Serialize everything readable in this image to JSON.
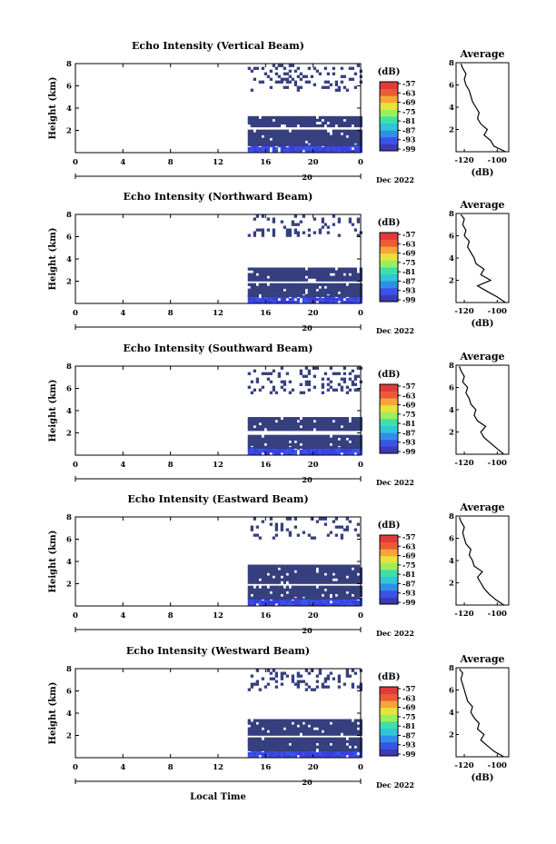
{
  "chart_data": [
    {
      "type": "heatmap",
      "title": "Echo Intensity (Vertical Beam)",
      "ylabel": "Height (km)",
      "xlim": [
        0,
        24
      ],
      "ylim": [
        0,
        8
      ],
      "x_ticks": [
        "0",
        "4",
        "8",
        "12",
        "16",
        "20",
        "0"
      ],
      "y_ticks": [
        "2",
        "4",
        "6",
        "8"
      ],
      "date_label": "20",
      "date_right": "Dec 2022",
      "colorbar": {
        "label": "(dB)",
        "ticks": [
          "-57",
          "-63",
          "-69",
          "-75",
          "-81",
          "-87",
          "-93",
          "-99"
        ]
      },
      "data_start_hour": 14.5,
      "layers": [
        {
          "y0": 0.0,
          "y1": 0.6,
          "level": "-90",
          "color": "#3b3ee0"
        },
        {
          "y0": 0.6,
          "y1": 2.0,
          "level": "-96",
          "color": "#363f7e"
        },
        {
          "y0": 2.3,
          "y1": 3.2,
          "level": "-96",
          "color": "#363f7e"
        },
        {
          "y0": 5.5,
          "y1": 7.8,
          "level": "-96",
          "color": "#363f7e",
          "sparse": true
        }
      ],
      "profile": {
        "title": "Average",
        "xlabel": "(dB)",
        "xlim": [
          -125,
          -93
        ],
        "ylim": [
          0,
          8
        ],
        "x_ticks": [
          "-120",
          "-100"
        ],
        "y_ticks": [
          "2",
          "4",
          "6",
          "8"
        ],
        "height": [
          0.0,
          0.5,
          1.0,
          1.5,
          2.0,
          2.5,
          3.0,
          3.5,
          4.0,
          4.5,
          5.0,
          5.5,
          6.0,
          6.5,
          7.0,
          7.5,
          7.9
        ],
        "value": [
          -95,
          -102,
          -104,
          -108,
          -106,
          -110,
          -112,
          -111,
          -113,
          -115,
          -116,
          -117,
          -119,
          -120,
          -119,
          -121,
          -122
        ]
      }
    },
    {
      "type": "heatmap",
      "title": "Echo Intensity (Northward Beam)",
      "ylabel": "Height (km)",
      "xlim": [
        0,
        24
      ],
      "ylim": [
        0,
        8
      ],
      "x_ticks": [
        "0",
        "4",
        "8",
        "12",
        "16",
        "20",
        "0"
      ],
      "y_ticks": [
        "2",
        "4",
        "6",
        "8"
      ],
      "date_label": "20",
      "date_right": "Dec 2022",
      "colorbar": {
        "label": "(dB)",
        "ticks": [
          "-57",
          "-63",
          "-69",
          "-75",
          "-81",
          "-87",
          "-93",
          "-99"
        ]
      },
      "data_start_hour": 14.5,
      "layers": [
        {
          "y0": 0.0,
          "y1": 0.6,
          "level": "-90",
          "color": "#3b3ee0"
        },
        {
          "y0": 0.6,
          "y1": 1.8,
          "level": "-96",
          "color": "#363f7e"
        },
        {
          "y0": 2.0,
          "y1": 3.2,
          "level": "-96",
          "color": "#363f7e"
        },
        {
          "y0": 6.0,
          "y1": 7.8,
          "level": "-96",
          "color": "#363f7e",
          "sparse": true
        }
      ],
      "profile": {
        "title": "Average",
        "xlabel": "(dB)",
        "xlim": [
          -125,
          -93
        ],
        "ylim": [
          0,
          8
        ],
        "x_ticks": [
          "-120",
          "-100"
        ],
        "y_ticks": [
          "2",
          "4",
          "6",
          "8"
        ],
        "height": [
          0.0,
          0.5,
          1.0,
          1.5,
          2.0,
          2.5,
          3.0,
          3.5,
          4.0,
          4.5,
          5.0,
          5.5,
          6.0,
          6.5,
          7.0,
          7.5,
          7.9
        ],
        "value": [
          -95,
          -100,
          -106,
          -112,
          -104,
          -110,
          -108,
          -113,
          -114,
          -116,
          -118,
          -117,
          -120,
          -119,
          -121,
          -120,
          -122
        ]
      }
    },
    {
      "type": "heatmap",
      "title": "Echo Intensity (Southward Beam)",
      "ylabel": "Height (km)",
      "xlim": [
        0,
        24
      ],
      "ylim": [
        0,
        8
      ],
      "x_ticks": [
        "0",
        "4",
        "8",
        "12",
        "16",
        "20",
        "0"
      ],
      "y_ticks": [
        "2",
        "4",
        "6",
        "8"
      ],
      "date_label": "20",
      "date_right": "Dec 2022",
      "colorbar": {
        "label": "(dB)",
        "ticks": [
          "-57",
          "-63",
          "-69",
          "-75",
          "-81",
          "-87",
          "-93",
          "-99"
        ]
      },
      "data_start_hour": 14.5,
      "layers": [
        {
          "y0": 0.0,
          "y1": 0.6,
          "level": "-90",
          "color": "#3b3ee0"
        },
        {
          "y0": 0.6,
          "y1": 1.8,
          "level": "-96",
          "color": "#363f7e"
        },
        {
          "y0": 2.2,
          "y1": 3.4,
          "level": "-96",
          "color": "#363f7e"
        },
        {
          "y0": 5.5,
          "y1": 7.8,
          "level": "-96",
          "color": "#363f7e",
          "sparse": true
        }
      ],
      "profile": {
        "title": "Average",
        "xlabel": "",
        "xlim": [
          -125,
          -93
        ],
        "ylim": [
          0,
          8
        ],
        "x_ticks": [
          "-120",
          "-100"
        ],
        "y_ticks": [
          "2",
          "4",
          "6",
          "8"
        ],
        "height": [
          0.0,
          0.5,
          1.0,
          1.5,
          2.0,
          2.5,
          3.0,
          3.5,
          4.0,
          4.5,
          5.0,
          5.5,
          6.0,
          6.5,
          7.0,
          7.5,
          7.9
        ],
        "value": [
          -96,
          -100,
          -104,
          -108,
          -110,
          -107,
          -112,
          -114,
          -113,
          -116,
          -117,
          -119,
          -118,
          -121,
          -120,
          -122,
          -123
        ]
      }
    },
    {
      "type": "heatmap",
      "title": "Echo Intensity (Eastward Beam)",
      "ylabel": "Height (km)",
      "xlim": [
        0,
        24
      ],
      "ylim": [
        0,
        8
      ],
      "x_ticks": [
        "0",
        "4",
        "8",
        "12",
        "16",
        "20",
        "0"
      ],
      "y_ticks": [
        "2",
        "4",
        "6",
        "8"
      ],
      "date_label": "20",
      "date_right": "Dec 2022",
      "colorbar": {
        "label": "(dB)",
        "ticks": [
          "-57",
          "-63",
          "-69",
          "-75",
          "-81",
          "-87",
          "-93",
          "-99"
        ]
      },
      "data_start_hour": 14.5,
      "layers": [
        {
          "y0": 0.0,
          "y1": 0.6,
          "level": "-90",
          "color": "#3b3ee0"
        },
        {
          "y0": 0.6,
          "y1": 1.7,
          "level": "-96",
          "color": "#363f7e"
        },
        {
          "y0": 2.0,
          "y1": 3.5,
          "level": "-96",
          "color": "#363f7e"
        },
        {
          "y0": 6.0,
          "y1": 7.8,
          "level": "-96",
          "color": "#363f7e",
          "sparse": true
        }
      ],
      "profile": {
        "title": "Average",
        "xlabel": "",
        "xlim": [
          -125,
          -93
        ],
        "ylim": [
          0,
          8
        ],
        "x_ticks": [
          "-120",
          "-100"
        ],
        "y_ticks": [
          "2",
          "4",
          "6",
          "8"
        ],
        "height": [
          0.0,
          0.5,
          1.0,
          1.5,
          2.0,
          2.5,
          3.0,
          3.5,
          4.0,
          4.5,
          5.0,
          5.5,
          6.0,
          6.5,
          7.0,
          7.5,
          7.9
        ],
        "value": [
          -96,
          -101,
          -105,
          -108,
          -110,
          -112,
          -109,
          -114,
          -115,
          -117,
          -116,
          -119,
          -120,
          -121,
          -120,
          -122,
          -123
        ]
      }
    },
    {
      "type": "heatmap",
      "title": "Echo Intensity (Westward Beam)",
      "ylabel": "Height (km)",
      "xlabel": "Local Time",
      "xlim": [
        0,
        24
      ],
      "ylim": [
        0,
        8
      ],
      "x_ticks": [
        "0",
        "4",
        "8",
        "12",
        "16",
        "20",
        "0"
      ],
      "y_ticks": [
        "2",
        "4",
        "6",
        "8"
      ],
      "date_label": "20",
      "date_right": "Dec 2022",
      "colorbar": {
        "label": "(dB)",
        "ticks": [
          "-57",
          "-63",
          "-69",
          "-75",
          "-81",
          "-87",
          "-93",
          "-99"
        ]
      },
      "data_start_hour": 14.5,
      "layers": [
        {
          "y0": 0.0,
          "y1": 0.6,
          "level": "-90",
          "color": "#3b3ee0"
        },
        {
          "y0": 0.6,
          "y1": 1.7,
          "level": "-96",
          "color": "#363f7e"
        },
        {
          "y0": 2.0,
          "y1": 3.4,
          "level": "-96",
          "color": "#363f7e"
        },
        {
          "y0": 6.0,
          "y1": 7.8,
          "level": "-96",
          "color": "#363f7e",
          "sparse": true
        }
      ],
      "profile": {
        "title": "Average",
        "xlabel": "(dB)",
        "xlim": [
          -125,
          -93
        ],
        "ylim": [
          0,
          8
        ],
        "x_ticks": [
          "-120",
          "-100"
        ],
        "y_ticks": [
          "2",
          "4",
          "6",
          "8"
        ],
        "height": [
          0.0,
          0.5,
          1.0,
          1.5,
          2.0,
          2.5,
          3.0,
          3.5,
          4.0,
          4.5,
          5.0,
          5.5,
          6.0,
          6.5,
          7.0,
          7.5,
          7.9
        ],
        "value": [
          -96,
          -102,
          -106,
          -110,
          -108,
          -112,
          -111,
          -114,
          -116,
          -115,
          -118,
          -119,
          -120,
          -121,
          -122,
          -121,
          -123
        ]
      }
    }
  ],
  "colormap": [
    "#3a3bb5",
    "#3a54e8",
    "#2f8fe8",
    "#2ec6d9",
    "#3fe0a8",
    "#9bef5a",
    "#e6e33a",
    "#f7a438",
    "#ee5a36",
    "#e23a3a"
  ],
  "footer": {
    "xlabel": "Local Time"
  }
}
